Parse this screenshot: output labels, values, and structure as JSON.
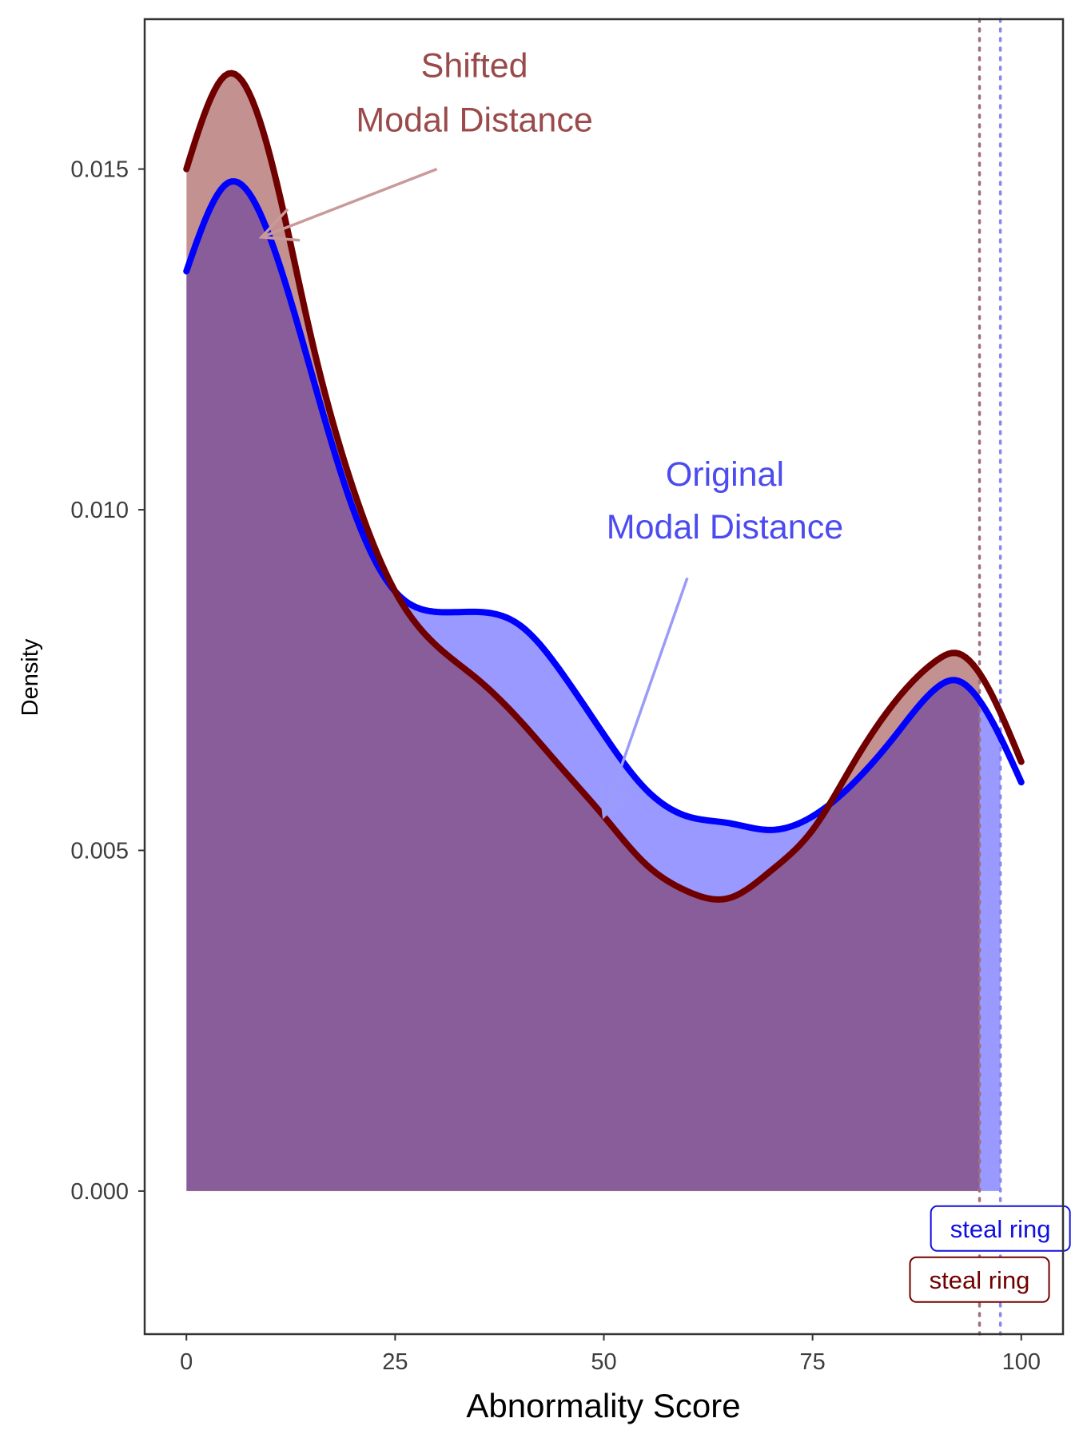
{
  "chart_data": {
    "type": "area",
    "xlabel": "Abnormality Score",
    "ylabel": "Density",
    "xlim": [
      -5,
      105
    ],
    "ylim": [
      -0.0021,
      0.0172
    ],
    "x_ticks": [
      0,
      25,
      50,
      75,
      100
    ],
    "y_ticks": [
      0,
      0.005,
      0.01,
      0.015
    ],
    "x_tick_labels": [
      "0",
      "25",
      "50",
      "75",
      "100"
    ],
    "y_tick_labels": [
      "0.000",
      "0.005",
      "0.010",
      "0.015"
    ],
    "grid": false,
    "series": [
      {
        "key": "original",
        "color": "#0000ff",
        "fill": "#9999ff",
        "fill_until_x": 97.5,
        "x": [
          0,
          5,
          10,
          15,
          20,
          25,
          30,
          35,
          40,
          45,
          50,
          55,
          60,
          65,
          70,
          75,
          80,
          85,
          90,
          92,
          95,
          100
        ],
        "y": [
          0.0135,
          0.0148,
          0.014,
          0.012,
          0.01,
          0.0088,
          0.0085,
          0.0085,
          0.0083,
          0.0076,
          0.0067,
          0.0059,
          0.0055,
          0.0054,
          0.0053,
          0.0055,
          0.006,
          0.0067,
          0.0074,
          0.0075,
          0.0072,
          0.006
        ]
      },
      {
        "key": "shifted",
        "color": "#700000",
        "fill": "#c49191",
        "fill_until_x": 95,
        "x": [
          0,
          5,
          10,
          15,
          20,
          25,
          30,
          35,
          40,
          45,
          50,
          55,
          60,
          65,
          70,
          75,
          80,
          85,
          90,
          92,
          95,
          100
        ],
        "y": [
          0.015,
          0.0164,
          0.0152,
          0.0125,
          0.0103,
          0.0088,
          0.008,
          0.0075,
          0.0069,
          0.0062,
          0.0055,
          0.0048,
          0.0044,
          0.0043,
          0.0047,
          0.0053,
          0.0063,
          0.0072,
          0.0078,
          0.0079,
          0.0076,
          0.0063
        ]
      }
    ],
    "overlap_fill": "#895d9a",
    "annotations": [
      {
        "key": "shifted",
        "lines": [
          "Shifted",
          "Modal Distance"
        ],
        "color": "#9a4a4a",
        "arrow_color": "#c99a9a",
        "text_x": 34.5,
        "text_y_lines": [
          0.01635,
          0.01555
        ],
        "arrow_from": [
          30,
          0.015
        ],
        "arrow_to": [
          9,
          0.014
        ]
      },
      {
        "key": "original",
        "lines": [
          "Original",
          "Modal Distance"
        ],
        "color": "#4b4bf0",
        "arrow_color": "#9b9bf8",
        "text_x": 64.5,
        "text_y_lines": [
          0.01035,
          0.00958
        ],
        "arrow_from": [
          60,
          0.009
        ],
        "arrow_to": [
          50,
          0.0055
        ]
      }
    ],
    "vlines": [
      {
        "key": "shifted",
        "x": 95,
        "color": "#a0707a"
      },
      {
        "key": "original",
        "x": 97.5,
        "color": "#8888ee"
      }
    ],
    "markers": [
      {
        "key": "original",
        "label": "steal ring",
        "x": 97.5,
        "y": -0.00055,
        "color": "#1010e0",
        "border": "#1010e0"
      },
      {
        "key": "shifted",
        "label": "steal ring",
        "x": 95,
        "y": -0.0013,
        "color": "#700000",
        "border": "#700000"
      }
    ]
  }
}
